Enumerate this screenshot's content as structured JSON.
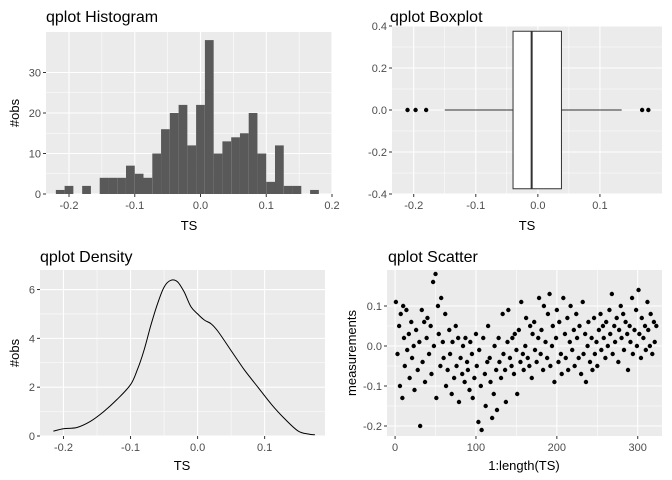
{
  "chart_data": [
    {
      "type": "bar",
      "title": "qplot Histogram",
      "xlabel": "TS",
      "ylabel": "#obs",
      "xlim": [
        -0.235,
        0.2
      ],
      "ylim": [
        0,
        40
      ],
      "xticks": [
        -0.2,
        -0.1,
        0.0,
        0.1,
        0.2
      ],
      "xtick_labels": [
        "-0.2",
        "-0.1",
        "0.0",
        "0.1",
        "0.2"
      ],
      "yticks": [
        0,
        10,
        20,
        30
      ],
      "ytick_labels": [
        "0",
        "10",
        "20",
        "30"
      ],
      "bin_width": 0.0133,
      "bin_starts": [
        -0.22,
        -0.2067,
        -0.1933,
        -0.18,
        -0.1667,
        -0.1533,
        -0.14,
        -0.1267,
        -0.1133,
        -0.1,
        -0.0867,
        -0.0733,
        -0.06,
        -0.0467,
        -0.0333,
        -0.02,
        -0.0067,
        0.0067,
        0.02,
        0.0333,
        0.0467,
        0.06,
        0.0733,
        0.0867,
        0.1,
        0.1133,
        0.1267,
        0.14,
        0.1533,
        0.1667
      ],
      "values": [
        1,
        2,
        0,
        2,
        0,
        4,
        4,
        4,
        7,
        5,
        4,
        10,
        16,
        20,
        22,
        12,
        22,
        38,
        10,
        13,
        14,
        15,
        20,
        10,
        3,
        12,
        2,
        2,
        0,
        1
      ],
      "grid": true,
      "fill_color": "#595959",
      "panel_color": "#ebebeb"
    },
    {
      "type": "boxplot",
      "title": "qplot Boxplot",
      "xlabel": "TS",
      "ylabel": "",
      "xlim": [
        -0.235,
        0.2
      ],
      "ylim": [
        -0.4,
        0.4
      ],
      "xticks": [
        -0.2,
        -0.1,
        0.0,
        0.1
      ],
      "xtick_labels": [
        "-0.2",
        "-0.1",
        "0.0",
        "0.1"
      ],
      "yticks": [
        -0.4,
        -0.2,
        0.0,
        0.2,
        0.4
      ],
      "ytick_labels": [
        "-0.4",
        "-0.2",
        "0.0",
        "0.2",
        "0.4"
      ],
      "box": {
        "lower_whisker": -0.15,
        "q1": -0.04,
        "median": -0.01,
        "q3": 0.038,
        "upper_whisker": 0.135,
        "ymin": -0.375,
        "ymax": 0.375
      },
      "outliers": [
        -0.21,
        -0.197,
        -0.18,
        0.168,
        0.178
      ],
      "grid": true
    },
    {
      "type": "line",
      "title": "qplot Density",
      "xlabel": "TS",
      "ylabel": "#obs",
      "xlim": [
        -0.235,
        0.19
      ],
      "ylim": [
        0,
        6.8
      ],
      "xticks": [
        -0.2,
        -0.1,
        0.0,
        0.1
      ],
      "xtick_labels": [
        "-0.2",
        "-0.1",
        "0.0",
        "0.1"
      ],
      "yticks": [
        0,
        2,
        4,
        6
      ],
      "ytick_labels": [
        "0",
        "2",
        "4",
        "6"
      ],
      "x": [
        -0.215,
        -0.2,
        -0.18,
        -0.16,
        -0.14,
        -0.12,
        -0.1,
        -0.09,
        -0.08,
        -0.07,
        -0.06,
        -0.05,
        -0.04,
        -0.03,
        -0.02,
        -0.01,
        0.0,
        0.01,
        0.02,
        0.03,
        0.05,
        0.07,
        0.09,
        0.11,
        0.13,
        0.15,
        0.165,
        0.175
      ],
      "y": [
        0.2,
        0.3,
        0.35,
        0.6,
        1.0,
        1.5,
        2.1,
        2.7,
        3.5,
        4.5,
        5.4,
        6.1,
        6.38,
        6.32,
        5.9,
        5.3,
        5.0,
        4.75,
        4.6,
        4.3,
        3.5,
        2.7,
        2.0,
        1.3,
        0.7,
        0.2,
        0.08,
        0.05
      ],
      "grid": true
    },
    {
      "type": "scatter",
      "title": "qplot Scatter",
      "xlabel": "1:length(TS)",
      "ylabel": "measurements",
      "xlim": [
        -10,
        330
      ],
      "ylim": [
        -0.225,
        0.19
      ],
      "xticks": [
        0,
        100,
        200,
        300
      ],
      "xtick_labels": [
        "0",
        "100",
        "200",
        "300"
      ],
      "yticks": [
        -0.2,
        -0.1,
        0.0,
        0.1
      ],
      "ytick_labels": [
        "-0.2",
        "-0.1",
        "0.0",
        "0.1"
      ],
      "points": [
        [
          1,
          0.11
        ],
        [
          3,
          -0.02
        ],
        [
          5,
          0.05
        ],
        [
          6,
          -0.1
        ],
        [
          7,
          0.08
        ],
        [
          9,
          -0.13
        ],
        [
          10,
          0.1
        ],
        [
          11,
          0.02
        ],
        [
          12,
          -0.05
        ],
        [
          14,
          0.09
        ],
        [
          15,
          -0.01
        ],
        [
          17,
          0.03
        ],
        [
          18,
          -0.08
        ],
        [
          20,
          0.06
        ],
        [
          21,
          -0.03
        ],
        [
          23,
          0.0
        ],
        [
          24,
          -0.11
        ],
        [
          26,
          0.04
        ],
        [
          28,
          -0.06
        ],
        [
          30,
          0.01
        ],
        [
          31,
          -0.2
        ],
        [
          33,
          0.09
        ],
        [
          34,
          -0.04
        ],
        [
          36,
          0.06
        ],
        [
          37,
          -0.09
        ],
        [
          39,
          0.02
        ],
        [
          40,
          0.07
        ],
        [
          42,
          -0.02
        ],
        [
          44,
          0.05
        ],
        [
          45,
          -0.07
        ],
        [
          47,
          0.16
        ],
        [
          48,
          0.0
        ],
        [
          50,
          0.18
        ],
        [
          51,
          -0.13
        ],
        [
          53,
          0.1
        ],
        [
          54,
          0.03
        ],
        [
          56,
          -0.05
        ],
        [
          57,
          0.12
        ],
        [
          59,
          0.01
        ],
        [
          60,
          -0.03
        ],
        [
          62,
          0.08
        ],
        [
          63,
          -0.1
        ],
        [
          65,
          -0.06
        ],
        [
          67,
          0.04
        ],
        [
          68,
          -0.02
        ],
        [
          70,
          -0.12
        ],
        [
          71,
          0.01
        ],
        [
          73,
          -0.08
        ],
        [
          75,
          0.05
        ],
        [
          76,
          -0.05
        ],
        [
          78,
          0.02
        ],
        [
          79,
          -0.14
        ],
        [
          81,
          -0.03
        ],
        [
          83,
          -0.07
        ],
        [
          84,
          0.0
        ],
        [
          86,
          -0.09
        ],
        [
          87,
          0.02
        ],
        [
          89,
          -0.04
        ],
        [
          90,
          -0.06
        ],
        [
          92,
          -0.11
        ],
        [
          93,
          0.01
        ],
        [
          95,
          -0.02
        ],
        [
          96,
          -0.13
        ],
        [
          98,
          -0.08
        ],
        [
          100,
          0.03
        ],
        [
          101,
          -0.05
        ],
        [
          103,
          -0.19
        ],
        [
          104,
          -0.01
        ],
        [
          106,
          -0.1
        ],
        [
          107,
          -0.21
        ],
        [
          109,
          0.02
        ],
        [
          111,
          -0.07
        ],
        [
          112,
          -0.15
        ],
        [
          114,
          -0.04
        ],
        [
          115,
          0.05
        ],
        [
          117,
          -0.03
        ],
        [
          118,
          -0.09
        ],
        [
          120,
          -0.18
        ],
        [
          122,
          -0.12
        ],
        [
          123,
          0.0
        ],
        [
          125,
          -0.06
        ],
        [
          126,
          -0.16
        ],
        [
          128,
          0.02
        ],
        [
          129,
          -0.04
        ],
        [
          131,
          -0.08
        ],
        [
          133,
          0.08
        ],
        [
          134,
          -0.02
        ],
        [
          136,
          -0.06
        ],
        [
          137,
          -0.14
        ],
        [
          139,
          0.01
        ],
        [
          140,
          0.09
        ],
        [
          142,
          -0.03
        ],
        [
          144,
          -0.05
        ],
        [
          145,
          0.02
        ],
        [
          147,
          -0.07
        ],
        [
          148,
          0.03
        ],
        [
          150,
          -0.01
        ],
        [
          151,
          -0.12
        ],
        [
          153,
          0.04
        ],
        [
          155,
          -0.04
        ],
        [
          156,
          0.11
        ],
        [
          158,
          -0.02
        ],
        [
          159,
          -0.06
        ],
        [
          161,
          0.0
        ],
        [
          162,
          0.07
        ],
        [
          164,
          -0.03
        ],
        [
          166,
          -0.05
        ],
        [
          167,
          0.05
        ],
        [
          169,
          -0.08
        ],
        [
          170,
          0.03
        ],
        [
          172,
          0.06
        ],
        [
          173,
          -0.01
        ],
        [
          175,
          -0.04
        ],
        [
          177,
          0.02
        ],
        [
          178,
          0.12
        ],
        [
          180,
          -0.02
        ],
        [
          181,
          0.04
        ],
        [
          183,
          -0.06
        ],
        [
          184,
          0.1
        ],
        [
          186,
          0.01
        ],
        [
          188,
          -0.03
        ],
        [
          189,
          0.08
        ],
        [
          191,
          0.13
        ],
        [
          192,
          -0.05
        ],
        [
          194,
          0.0
        ],
        [
          195,
          0.05
        ],
        [
          197,
          -0.09
        ],
        [
          199,
          0.02
        ],
        [
          200,
          0.09
        ],
        [
          202,
          -0.04
        ],
        [
          203,
          0.06
        ],
        [
          205,
          -0.02
        ],
        [
          206,
          -0.07
        ],
        [
          208,
          0.12
        ],
        [
          210,
          0.03
        ],
        [
          211,
          -0.03
        ],
        [
          213,
          0.07
        ],
        [
          214,
          -0.06
        ],
        [
          216,
          0.01
        ],
        [
          217,
          0.1
        ],
        [
          219,
          -0.01
        ],
        [
          221,
          0.04
        ],
        [
          222,
          -0.05
        ],
        [
          224,
          0.08
        ],
        [
          225,
          0.02
        ],
        [
          227,
          -0.03
        ],
        [
          228,
          0.05
        ],
        [
          230,
          -0.07
        ],
        [
          232,
          0.11
        ],
        [
          233,
          -0.02
        ],
        [
          235,
          0.03
        ],
        [
          236,
          -0.09
        ],
        [
          238,
          0.0
        ],
        [
          239,
          0.06
        ],
        [
          241,
          -0.04
        ],
        [
          243,
          0.02
        ],
        [
          244,
          -0.06
        ],
        [
          246,
          0.07
        ],
        [
          247,
          -0.02
        ],
        [
          249,
          0.01
        ],
        [
          250,
          -0.05
        ],
        [
          252,
          0.04
        ],
        [
          254,
          0.08
        ],
        [
          255,
          -0.01
        ],
        [
          257,
          0.05
        ],
        [
          258,
          0.02
        ],
        [
          260,
          -0.03
        ],
        [
          261,
          0.06
        ],
        [
          263,
          0.0
        ],
        [
          265,
          0.09
        ],
        [
          266,
          0.03
        ],
        [
          268,
          0.13
        ],
        [
          269,
          -0.02
        ],
        [
          271,
          0.05
        ],
        [
          272,
          0.01
        ],
        [
          274,
          0.07
        ],
        [
          276,
          -0.04
        ],
        [
          277,
          0.04
        ],
        [
          279,
          0.1
        ],
        [
          280,
          0.02
        ],
        [
          282,
          0.08
        ],
        [
          283,
          -0.01
        ],
        [
          285,
          0.06
        ],
        [
          287,
          0.03
        ],
        [
          288,
          -0.06
        ],
        [
          290,
          0.05
        ],
        [
          291,
          0.01
        ],
        [
          293,
          0.12
        ],
        [
          294,
          -0.02
        ],
        [
          296,
          0.04
        ],
        [
          298,
          0.09
        ],
        [
          299,
          0.0
        ],
        [
          301,
          0.14
        ],
        [
          302,
          0.03
        ],
        [
          304,
          -0.03
        ],
        [
          305,
          0.07
        ],
        [
          307,
          0.02
        ],
        [
          309,
          0.05
        ],
        [
          310,
          -0.01
        ],
        [
          312,
          0.11
        ],
        [
          313,
          0.04
        ],
        [
          315,
          0.0
        ],
        [
          316,
          0.08
        ],
        [
          318,
          -0.02
        ],
        [
          320,
          0.06
        ],
        [
          321,
          0.01
        ],
        [
          323,
          0.05
        ]
      ],
      "grid": true
    }
  ]
}
